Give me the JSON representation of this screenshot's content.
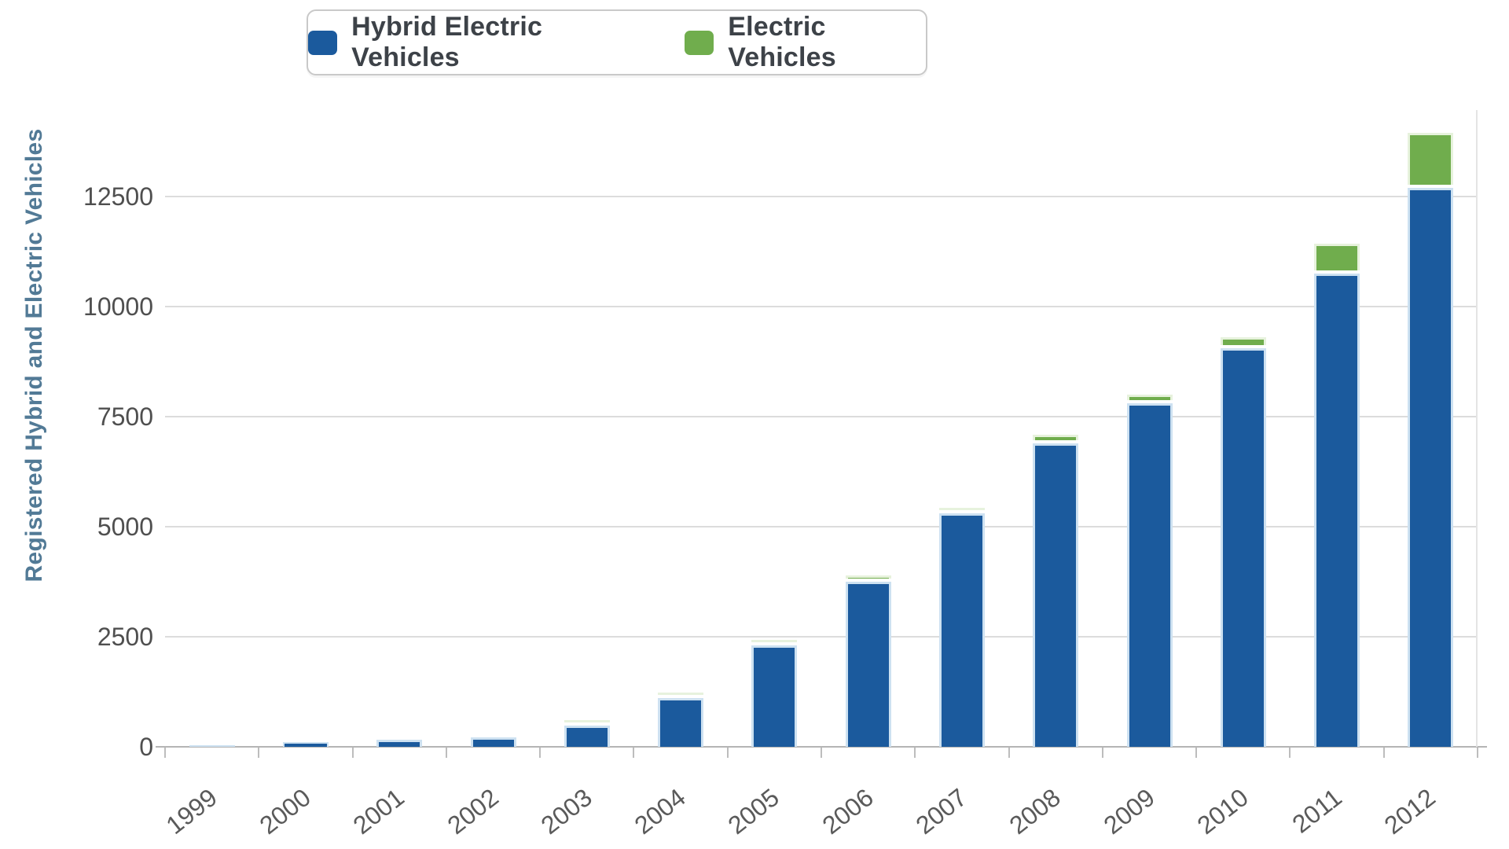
{
  "legend": {
    "items": [
      {
        "label": "Hybrid Electric Vehicles",
        "color": "#1b5a9d"
      },
      {
        "label": "Electric Vehicles",
        "color": "#70ad4d"
      }
    ]
  },
  "chart_data": {
    "type": "bar",
    "stacked": true,
    "title": "",
    "xlabel": "",
    "ylabel": "Registered Hybrid and Electric Vehicles",
    "categories": [
      "1999",
      "2000",
      "2001",
      "2002",
      "2003",
      "2004",
      "2005",
      "2006",
      "2007",
      "2008",
      "2009",
      "2010",
      "2011",
      "2012"
    ],
    "series": [
      {
        "name": "Hybrid Electric Vehicles",
        "color": "#1b5a9d",
        "values": [
          20,
          100,
          160,
          220,
          490,
          1100,
          2300,
          3750,
          5300,
          6900,
          7800,
          9050,
          10750,
          12700
        ]
      },
      {
        "name": "Electric Vehicles",
        "color": "#70ad4d",
        "values": [
          0,
          0,
          0,
          0,
          10,
          30,
          50,
          70,
          50,
          120,
          130,
          180,
          600,
          1170
        ]
      }
    ],
    "yticks": [
      0,
      2500,
      5000,
      7500,
      10000,
      12500
    ],
    "ylim": [
      0,
      14460
    ],
    "grid": true,
    "legend_position": "top"
  },
  "colors": {
    "hev_bar": "#1b5a9d",
    "hev_halo": "#cde1f1",
    "ev_bar": "#70ad4d",
    "ev_halo": "#e7f2dd",
    "axis_title": "#527a96",
    "tick_text": "#4f4f4f",
    "gridline": "#dcdcdc",
    "axis_line": "#b5b5b5",
    "legend_border": "#c9c9c9",
    "background": "#ffffff"
  }
}
